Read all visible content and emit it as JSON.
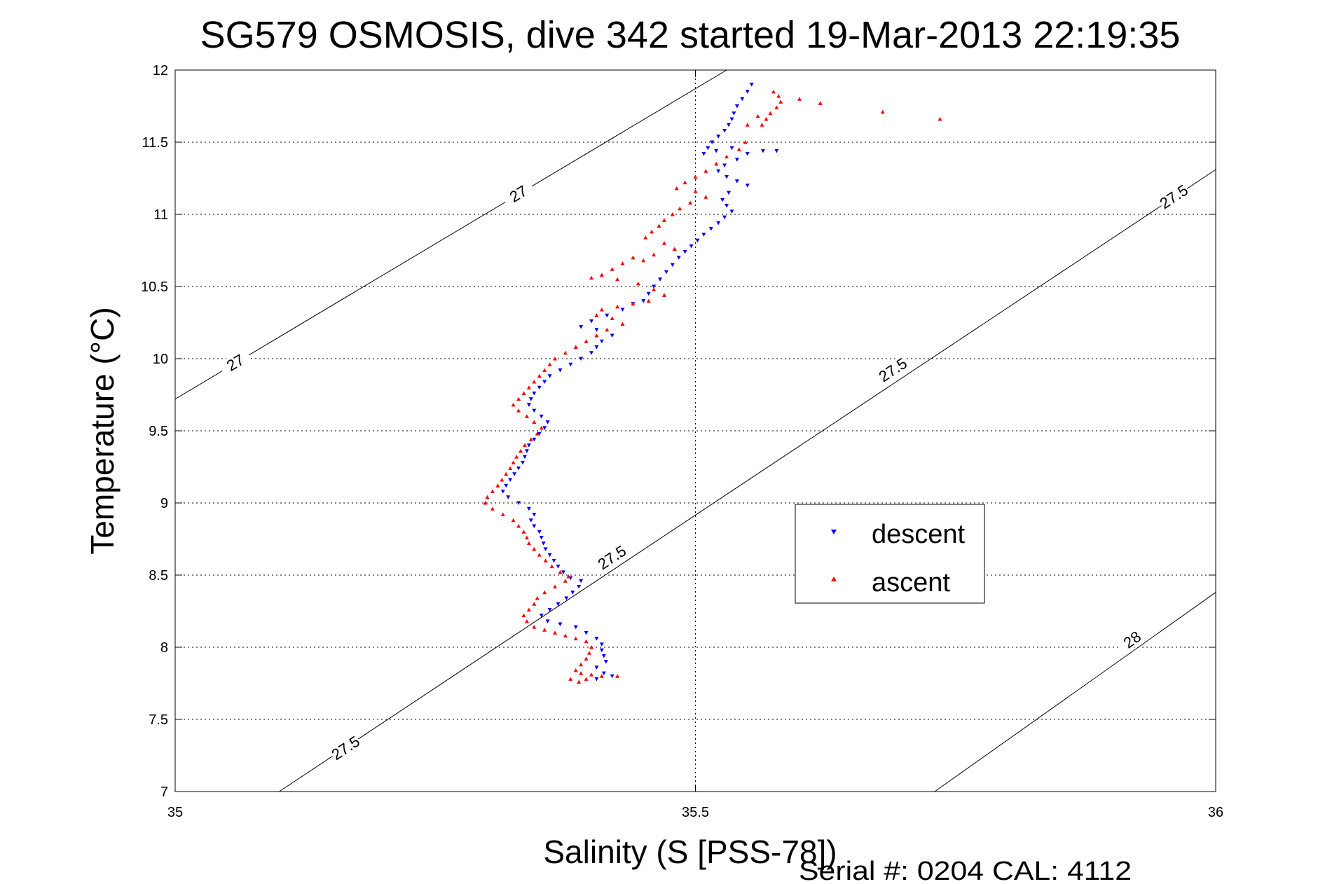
{
  "chart_data": {
    "type": "scatter",
    "title": "SG579 OSMOSIS, dive 342 started 19-Mar-2013 22:19:35",
    "xlabel": "Salinity (S [PSS-78])",
    "ylabel": "Temperature (°C)",
    "xlim": [
      35,
      36
    ],
    "ylim": [
      7,
      12
    ],
    "xticks": [
      "35",
      "35.5",
      "36"
    ],
    "yticks": [
      "7",
      "7.5",
      "8",
      "8.5",
      "9",
      "9.5",
      "10",
      "10.5",
      "11",
      "11.5",
      "12"
    ],
    "grid": true,
    "legend_position": "center-right",
    "footer": "Serial #: 0204  CAL: 4112",
    "contours": [
      {
        "label": "27",
        "points": [
          [
            35.0,
            9.72
          ],
          [
            35.53,
            12.0
          ]
        ],
        "label_positions": [
          [
            35.33,
            11.14
          ],
          [
            35.058,
            9.97
          ]
        ]
      },
      {
        "label": "27.5",
        "points": [
          [
            35.1,
            7.0
          ],
          [
            36.0,
            11.31
          ]
        ],
        "label_positions": [
          [
            35.164,
            7.3
          ],
          [
            35.42,
            8.62
          ],
          [
            35.69,
            9.92
          ],
          [
            35.96,
            11.12
          ]
        ]
      },
      {
        "label": "28",
        "points": [
          [
            35.73,
            7.0
          ],
          [
            36.0,
            8.38
          ]
        ],
        "label_positions": [
          [
            35.92,
            8.05
          ]
        ]
      }
    ],
    "series": [
      {
        "name": "descent",
        "color": "#0000ff",
        "marker": "triangle-down",
        "points": [
          [
            35.554,
            11.9
          ],
          [
            35.55,
            11.85
          ],
          [
            35.545,
            11.8
          ],
          [
            35.54,
            11.75
          ],
          [
            35.537,
            11.7
          ],
          [
            35.535,
            11.66
          ],
          [
            35.532,
            11.62
          ],
          [
            35.528,
            11.58
          ],
          [
            35.522,
            11.54
          ],
          [
            35.516,
            11.5
          ],
          [
            35.512,
            11.46
          ],
          [
            35.508,
            11.42
          ],
          [
            35.52,
            11.44
          ],
          [
            35.535,
            11.46
          ],
          [
            35.55,
            11.42
          ],
          [
            35.565,
            11.44
          ],
          [
            35.578,
            11.44
          ],
          [
            35.54,
            11.38
          ],
          [
            35.528,
            11.34
          ],
          [
            35.522,
            11.3
          ],
          [
            35.53,
            11.26
          ],
          [
            35.54,
            11.23
          ],
          [
            35.55,
            11.2
          ],
          [
            35.532,
            11.15
          ],
          [
            35.526,
            11.1
          ],
          [
            35.53,
            11.06
          ],
          [
            35.535,
            11.02
          ],
          [
            35.528,
            10.98
          ],
          [
            35.522,
            10.94
          ],
          [
            35.515,
            10.9
          ],
          [
            35.508,
            10.86
          ],
          [
            35.502,
            10.82
          ],
          [
            35.496,
            10.78
          ],
          [
            35.49,
            10.74
          ],
          [
            35.484,
            10.7
          ],
          [
            35.478,
            10.65
          ],
          [
            35.472,
            10.6
          ],
          [
            35.466,
            10.55
          ],
          [
            35.46,
            10.5
          ],
          [
            35.455,
            10.45
          ],
          [
            35.45,
            10.4
          ],
          [
            35.44,
            10.38
          ],
          [
            35.43,
            10.34
          ],
          [
            35.415,
            10.3
          ],
          [
            35.4,
            10.26
          ],
          [
            35.39,
            10.22
          ],
          [
            35.405,
            10.2
          ],
          [
            35.42,
            10.16
          ],
          [
            35.41,
            10.12
          ],
          [
            35.405,
            10.08
          ],
          [
            35.4,
            10.04
          ],
          [
            35.39,
            10.0
          ],
          [
            35.38,
            9.96
          ],
          [
            35.37,
            9.92
          ],
          [
            35.36,
            9.88
          ],
          [
            35.355,
            9.84
          ],
          [
            35.35,
            9.8
          ],
          [
            35.345,
            9.76
          ],
          [
            35.342,
            9.72
          ],
          [
            35.34,
            9.68
          ],
          [
            35.345,
            9.64
          ],
          [
            35.352,
            9.6
          ],
          [
            35.358,
            9.56
          ],
          [
            35.355,
            9.52
          ],
          [
            35.35,
            9.48
          ],
          [
            35.345,
            9.44
          ],
          [
            35.34,
            9.4
          ],
          [
            35.338,
            9.36
          ],
          [
            35.336,
            9.32
          ],
          [
            35.334,
            9.28
          ],
          [
            35.33,
            9.24
          ],
          [
            35.326,
            9.2
          ],
          [
            35.322,
            9.16
          ],
          [
            35.318,
            9.12
          ],
          [
            35.315,
            9.08
          ],
          [
            35.32,
            9.04
          ],
          [
            35.33,
            9.0
          ],
          [
            35.34,
            8.96
          ],
          [
            35.345,
            8.92
          ],
          [
            35.342,
            8.88
          ],
          [
            35.345,
            8.84
          ],
          [
            35.35,
            8.8
          ],
          [
            35.352,
            8.76
          ],
          [
            35.354,
            8.72
          ],
          [
            35.356,
            8.68
          ],
          [
            35.36,
            8.64
          ],
          [
            35.364,
            8.6
          ],
          [
            35.368,
            8.56
          ],
          [
            35.373,
            8.52
          ],
          [
            35.38,
            8.48
          ],
          [
            35.39,
            8.46
          ],
          [
            35.388,
            8.42
          ],
          [
            35.382,
            8.38
          ],
          [
            35.376,
            8.34
          ],
          [
            35.368,
            8.3
          ],
          [
            35.36,
            8.26
          ],
          [
            35.352,
            8.22
          ],
          [
            35.358,
            8.18
          ],
          [
            35.37,
            8.16
          ],
          [
            35.385,
            8.14
          ],
          [
            35.395,
            8.1
          ],
          [
            35.405,
            8.06
          ],
          [
            35.41,
            8.02
          ],
          [
            35.41,
            7.98
          ],
          [
            35.412,
            7.94
          ],
          [
            35.414,
            7.9
          ],
          [
            35.405,
            7.86
          ],
          [
            35.412,
            7.82
          ],
          [
            35.42,
            7.8
          ],
          [
            35.405,
            7.78
          ]
        ]
      },
      {
        "name": "ascent",
        "color": "#ff0000",
        "marker": "triangle-up",
        "points": [
          [
            35.575,
            11.85
          ],
          [
            35.58,
            11.82
          ],
          [
            35.582,
            11.78
          ],
          [
            35.578,
            11.74
          ],
          [
            35.572,
            11.7
          ],
          [
            35.568,
            11.66
          ],
          [
            35.564,
            11.62
          ],
          [
            35.6,
            11.8
          ],
          [
            35.62,
            11.77
          ],
          [
            35.68,
            11.71
          ],
          [
            35.735,
            11.66
          ],
          [
            35.56,
            11.68
          ],
          [
            35.55,
            11.62
          ],
          [
            35.548,
            11.5
          ],
          [
            35.542,
            11.45
          ],
          [
            35.53,
            11.4
          ],
          [
            35.52,
            11.35
          ],
          [
            35.51,
            11.3
          ],
          [
            35.5,
            11.26
          ],
          [
            35.49,
            11.22
          ],
          [
            35.482,
            11.18
          ],
          [
            35.5,
            11.16
          ],
          [
            35.51,
            11.12
          ],
          [
            35.495,
            11.08
          ],
          [
            35.485,
            11.04
          ],
          [
            35.478,
            11.0
          ],
          [
            35.47,
            10.96
          ],
          [
            35.465,
            10.92
          ],
          [
            35.458,
            10.88
          ],
          [
            35.452,
            10.84
          ],
          [
            35.47,
            10.8
          ],
          [
            35.48,
            10.76
          ],
          [
            35.46,
            10.72
          ],
          [
            35.45,
            10.68
          ],
          [
            35.44,
            10.7
          ],
          [
            35.43,
            10.66
          ],
          [
            35.42,
            10.62
          ],
          [
            35.41,
            10.58
          ],
          [
            35.4,
            10.56
          ],
          [
            35.425,
            10.55
          ],
          [
            35.445,
            10.52
          ],
          [
            35.46,
            10.48
          ],
          [
            35.47,
            10.44
          ],
          [
            35.455,
            10.4
          ],
          [
            35.44,
            10.38
          ],
          [
            35.425,
            10.36
          ],
          [
            35.41,
            10.34
          ],
          [
            35.405,
            10.3
          ],
          [
            35.42,
            10.28
          ],
          [
            35.43,
            10.24
          ],
          [
            35.415,
            10.2
          ],
          [
            35.405,
            10.16
          ],
          [
            35.395,
            10.12
          ],
          [
            35.385,
            10.08
          ],
          [
            35.375,
            10.04
          ],
          [
            35.365,
            10.0
          ],
          [
            35.36,
            9.96
          ],
          [
            35.355,
            9.92
          ],
          [
            35.35,
            9.88
          ],
          [
            35.345,
            9.84
          ],
          [
            35.34,
            9.8
          ],
          [
            35.335,
            9.76
          ],
          [
            35.33,
            9.72
          ],
          [
            35.325,
            9.68
          ],
          [
            35.33,
            9.64
          ],
          [
            35.338,
            9.6
          ],
          [
            35.345,
            9.56
          ],
          [
            35.352,
            9.52
          ],
          [
            35.348,
            9.48
          ],
          [
            35.342,
            9.44
          ],
          [
            35.336,
            9.4
          ],
          [
            35.332,
            9.36
          ],
          [
            35.328,
            9.32
          ],
          [
            35.325,
            9.28
          ],
          [
            35.322,
            9.24
          ],
          [
            35.318,
            9.2
          ],
          [
            35.314,
            9.16
          ],
          [
            35.31,
            9.12
          ],
          [
            35.305,
            9.08
          ],
          [
            35.3,
            9.04
          ],
          [
            35.298,
            9.0
          ],
          [
            35.305,
            8.96
          ],
          [
            35.315,
            8.92
          ],
          [
            35.325,
            8.88
          ],
          [
            35.33,
            8.84
          ],
          [
            35.335,
            8.8
          ],
          [
            35.338,
            8.76
          ],
          [
            35.34,
            8.72
          ],
          [
            35.345,
            8.68
          ],
          [
            35.35,
            8.64
          ],
          [
            35.356,
            8.6
          ],
          [
            35.362,
            8.56
          ],
          [
            35.37,
            8.52
          ],
          [
            35.378,
            8.49
          ],
          [
            35.375,
            8.46
          ],
          [
            35.365,
            8.42
          ],
          [
            35.355,
            8.38
          ],
          [
            35.348,
            8.34
          ],
          [
            35.345,
            8.3
          ],
          [
            35.34,
            8.26
          ],
          [
            35.335,
            8.22
          ],
          [
            35.338,
            8.18
          ],
          [
            35.345,
            8.14
          ],
          [
            35.355,
            8.12
          ],
          [
            35.365,
            8.1
          ],
          [
            35.375,
            8.08
          ],
          [
            35.385,
            8.06
          ],
          [
            35.395,
            8.04
          ],
          [
            35.4,
            8.0
          ],
          [
            35.398,
            7.96
          ],
          [
            35.395,
            7.92
          ],
          [
            35.39,
            7.88
          ],
          [
            35.385,
            7.84
          ],
          [
            35.39,
            7.82
          ],
          [
            35.4,
            7.81
          ],
          [
            35.41,
            7.8
          ],
          [
            35.425,
            7.8
          ],
          [
            35.38,
            7.78
          ],
          [
            35.388,
            7.76
          ],
          [
            35.395,
            7.78
          ]
        ]
      }
    ]
  },
  "legend": {
    "descent_label": "descent",
    "ascent_label": "ascent"
  }
}
